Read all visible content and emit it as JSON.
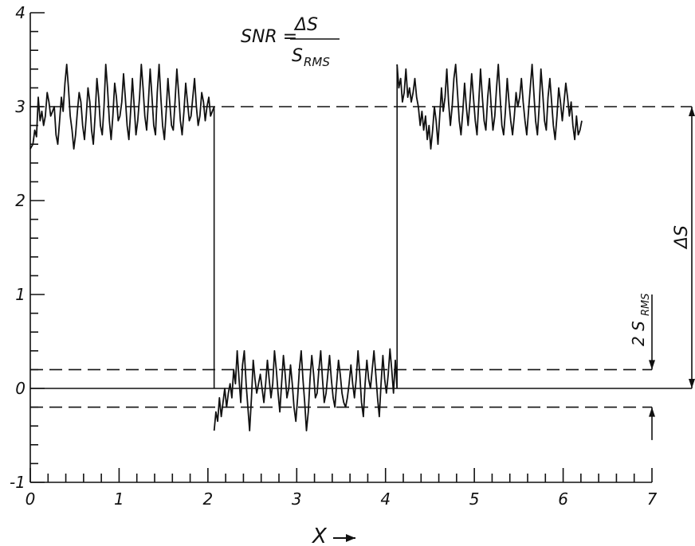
{
  "chart_data": {
    "type": "line",
    "title": "",
    "xlabel": "X",
    "ylabel": "",
    "xlim": [
      0,
      7
    ],
    "ylim": [
      -1,
      4
    ],
    "x_ticks": [
      "0",
      "1",
      "2",
      "3",
      "4",
      "5",
      "6",
      "7"
    ],
    "y_ticks": [
      "-1",
      "0",
      "1",
      "2",
      "3",
      "4"
    ],
    "grid": false,
    "formula": {
      "lhs": "SNR =",
      "numerator": "ΔS",
      "denominator_main": "S",
      "denominator_sub": "RMS"
    },
    "annotations": {
      "delta_s": "ΔS",
      "two_srms_main": "2 S",
      "two_srms_sub": "RMS"
    },
    "signal_high_level": 3.0,
    "signal_low_level": 0.0,
    "noise_band": [
      -0.2,
      0.2
    ],
    "step_down_x": 2.07,
    "step_up_x": 4.13,
    "series": [
      {
        "x": [
          0.0,
          0.03,
          0.05,
          0.07,
          0.09,
          0.11,
          0.13,
          0.15,
          0.17,
          0.19,
          0.21,
          0.23,
          0.25,
          0.27,
          0.29,
          0.31,
          0.33,
          0.35,
          0.37,
          0.39,
          0.41,
          0.43,
          0.45,
          0.47,
          0.49,
          0.51,
          0.53,
          0.55,
          0.57,
          0.59,
          0.61,
          0.63,
          0.65,
          0.67,
          0.69,
          0.71,
          0.73,
          0.75,
          0.77,
          0.79,
          0.81,
          0.83,
          0.85,
          0.87,
          0.89,
          0.91,
          0.93,
          0.95,
          0.97,
          0.99,
          1.01,
          1.03,
          1.05,
          1.07,
          1.09,
          1.11,
          1.13,
          1.15,
          1.17,
          1.19,
          1.21,
          1.23,
          1.25,
          1.27,
          1.29,
          1.31,
          1.33,
          1.35,
          1.37,
          1.39,
          1.41,
          1.43,
          1.45,
          1.47,
          1.49,
          1.51,
          1.53,
          1.55,
          1.57,
          1.59,
          1.61,
          1.63,
          1.65,
          1.67,
          1.69,
          1.71,
          1.73,
          1.75,
          1.77,
          1.79,
          1.81,
          1.83,
          1.85,
          1.87,
          1.89,
          1.91,
          1.93,
          1.95,
          1.97,
          1.99,
          2.01,
          2.03,
          2.05,
          2.07
        ],
        "y": [
          2.55,
          2.6,
          2.75,
          2.68,
          3.1,
          2.85,
          2.95,
          2.8,
          2.9,
          3.15,
          3.05,
          2.9,
          2.95,
          3.0,
          2.7,
          2.6,
          2.85,
          3.1,
          2.95,
          3.25,
          3.45,
          3.2,
          2.9,
          2.75,
          2.55,
          2.7,
          2.95,
          3.15,
          3.05,
          2.8,
          2.65,
          2.9,
          3.2,
          3.05,
          2.75,
          2.6,
          2.9,
          3.3,
          3.1,
          2.8,
          2.7,
          3.0,
          3.45,
          3.2,
          2.85,
          2.65,
          2.9,
          3.25,
          3.1,
          2.85,
          2.9,
          3.05,
          3.35,
          3.1,
          2.8,
          2.65,
          2.95,
          3.3,
          3.0,
          2.7,
          2.85,
          3.1,
          3.45,
          3.2,
          2.9,
          2.75,
          3.05,
          3.4,
          3.1,
          2.8,
          2.7,
          3.15,
          3.45,
          3.1,
          2.8,
          2.65,
          2.95,
          3.3,
          3.05,
          2.8,
          2.75,
          3.05,
          3.4,
          3.15,
          2.85,
          2.7,
          2.95,
          3.25,
          3.05,
          2.85,
          2.9,
          3.1,
          3.3,
          3.0,
          2.8,
          2.9,
          3.15,
          3.05,
          2.85,
          3.0,
          3.1,
          2.9,
          2.95,
          3.0
        ]
      },
      {
        "x": [
          2.07,
          2.09,
          2.11,
          2.13,
          2.15,
          2.17,
          2.19,
          2.21,
          2.23,
          2.25,
          2.27,
          2.29,
          2.31,
          2.33,
          2.35,
          2.37,
          2.39,
          2.41,
          2.43,
          2.45,
          2.47,
          2.49,
          2.51,
          2.53,
          2.55,
          2.57,
          2.59,
          2.61,
          2.63,
          2.65,
          2.67,
          2.69,
          2.71,
          2.73,
          2.75,
          2.77,
          2.79,
          2.81,
          2.83,
          2.85,
          2.87,
          2.89,
          2.91,
          2.93,
          2.95,
          2.97,
          2.99,
          3.01,
          3.03,
          3.05,
          3.07,
          3.09,
          3.11,
          3.13,
          3.15,
          3.17,
          3.19,
          3.21,
          3.23,
          3.25,
          3.27,
          3.29,
          3.31,
          3.33,
          3.35,
          3.37,
          3.39,
          3.41,
          3.43,
          3.45,
          3.47,
          3.49,
          3.51,
          3.53,
          3.55,
          3.57,
          3.59,
          3.61,
          3.63,
          3.65,
          3.67,
          3.69,
          3.71,
          3.73,
          3.75,
          3.77,
          3.79,
          3.81,
          3.83,
          3.85,
          3.87,
          3.89,
          3.91,
          3.93,
          3.95,
          3.97,
          3.99,
          4.01,
          4.03,
          4.05,
          4.07,
          4.09,
          4.11,
          4.13
        ],
        "y": [
          -0.45,
          -0.25,
          -0.35,
          -0.1,
          -0.3,
          -0.15,
          0.0,
          -0.2,
          -0.05,
          0.05,
          -0.1,
          0.2,
          0.05,
          0.4,
          0.1,
          -0.15,
          0.25,
          0.4,
          0.05,
          -0.2,
          -0.45,
          -0.1,
          0.3,
          0.1,
          -0.05,
          0.05,
          0.15,
          0.0,
          -0.15,
          0.05,
          0.3,
          0.1,
          -0.1,
          0.05,
          0.4,
          0.2,
          -0.05,
          -0.25,
          0.05,
          0.35,
          0.15,
          -0.1,
          0.0,
          0.25,
          0.05,
          -0.2,
          -0.35,
          -0.1,
          0.2,
          0.4,
          0.1,
          -0.15,
          -0.45,
          -0.25,
          0.1,
          0.35,
          0.15,
          -0.1,
          -0.05,
          0.2,
          0.4,
          0.1,
          -0.15,
          -0.05,
          0.15,
          0.35,
          0.1,
          -0.1,
          -0.2,
          0.05,
          0.3,
          0.15,
          -0.05,
          -0.15,
          -0.2,
          -0.1,
          0.05,
          0.25,
          0.05,
          -0.1,
          0.1,
          0.4,
          0.15,
          -0.15,
          -0.3,
          0.05,
          0.3,
          0.1,
          0.0,
          0.2,
          0.4,
          0.15,
          -0.1,
          -0.3,
          0.05,
          0.35,
          0.1,
          -0.05,
          0.15,
          0.42,
          0.2,
          -0.05,
          0.3,
          0.0
        ]
      },
      {
        "x": [
          4.13,
          4.15,
          4.17,
          4.19,
          4.21,
          4.23,
          4.25,
          4.27,
          4.29,
          4.31,
          4.33,
          4.35,
          4.37,
          4.39,
          4.41,
          4.43,
          4.45,
          4.47,
          4.49,
          4.51,
          4.53,
          4.55,
          4.57,
          4.59,
          4.61,
          4.63,
          4.65,
          4.67,
          4.69,
          4.71,
          4.73,
          4.75,
          4.77,
          4.79,
          4.81,
          4.83,
          4.85,
          4.87,
          4.89,
          4.91,
          4.93,
          4.95,
          4.97,
          4.99,
          5.01,
          5.03,
          5.05,
          5.07,
          5.09,
          5.11,
          5.13,
          5.15,
          5.17,
          5.19,
          5.21,
          5.23,
          5.25,
          5.27,
          5.29,
          5.31,
          5.33,
          5.35,
          5.37,
          5.39,
          5.41,
          5.43,
          5.45,
          5.47,
          5.49,
          5.51,
          5.53,
          5.55,
          5.57,
          5.59,
          5.61,
          5.63,
          5.65,
          5.67,
          5.69,
          5.71,
          5.73,
          5.75,
          5.77,
          5.79,
          5.81,
          5.83,
          5.85,
          5.87,
          5.89,
          5.91,
          5.93,
          5.95,
          5.97,
          5.99,
          6.01,
          6.03,
          6.05,
          6.07,
          6.09,
          6.11,
          6.13,
          6.15,
          6.17,
          6.19,
          6.21
        ],
        "y": [
          3.45,
          3.2,
          3.3,
          3.05,
          3.15,
          3.4,
          3.1,
          3.2,
          3.05,
          3.15,
          3.3,
          3.1,
          3.0,
          2.8,
          2.95,
          2.75,
          2.9,
          2.65,
          2.8,
          2.55,
          2.75,
          3.0,
          2.85,
          2.6,
          2.9,
          3.2,
          2.95,
          3.1,
          3.4,
          3.05,
          2.8,
          3.0,
          3.3,
          3.45,
          3.15,
          2.85,
          2.7,
          2.95,
          3.25,
          3.0,
          2.8,
          3.05,
          3.35,
          3.1,
          2.85,
          2.7,
          3.05,
          3.4,
          3.1,
          2.85,
          2.75,
          3.1,
          3.3,
          3.0,
          2.75,
          2.9,
          3.2,
          3.45,
          3.1,
          2.8,
          2.7,
          2.95,
          3.3,
          3.05,
          2.85,
          2.7,
          2.9,
          3.15,
          3.0,
          3.1,
          3.3,
          3.05,
          2.85,
          2.7,
          2.95,
          3.2,
          3.45,
          3.15,
          2.85,
          2.7,
          3.0,
          3.4,
          3.15,
          2.85,
          2.75,
          3.1,
          3.3,
          3.05,
          2.8,
          2.65,
          2.9,
          3.2,
          3.05,
          2.85,
          3.05,
          3.25,
          3.1,
          2.9,
          3.05,
          2.8,
          2.65,
          2.9,
          2.7,
          2.75,
          2.85
        ]
      }
    ]
  }
}
